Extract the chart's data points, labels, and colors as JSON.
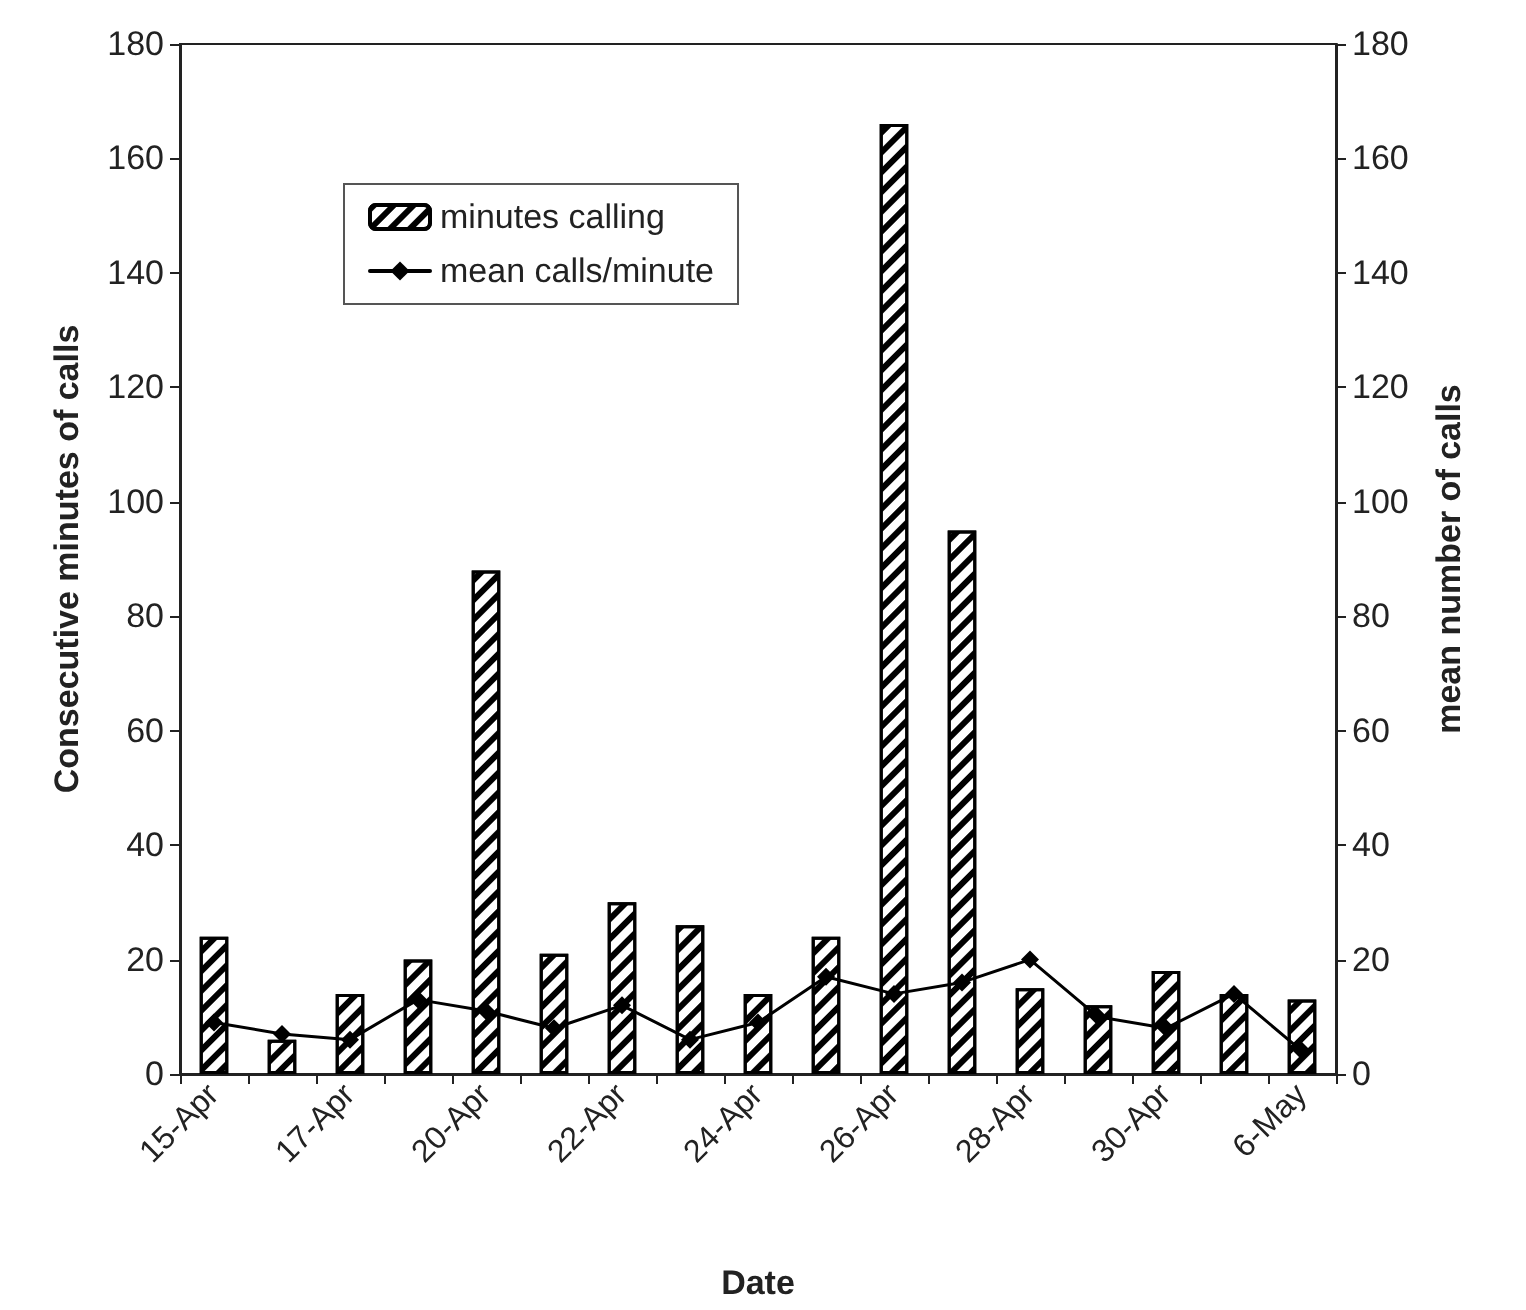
{
  "chart_data": {
    "type": "bar",
    "xlabel": "Date",
    "ylabel": "Consecutive minutes of calls",
    "y2label": "mean number of calls",
    "categories": [
      "15-Apr",
      null,
      "17-Apr",
      null,
      "20-Apr",
      null,
      "22-Apr",
      null,
      "24-Apr",
      null,
      "26-Apr",
      null,
      "28-Apr",
      null,
      "30-Apr",
      null,
      "6-May"
    ],
    "series": [
      {
        "name": "minutes calling",
        "color": "#000000",
        "values": [
          24,
          6,
          14,
          20,
          88,
          21,
          30,
          26,
          14,
          24,
          166,
          95,
          15,
          12,
          18,
          14,
          13
        ]
      },
      {
        "name": "mean calls/minute",
        "type": "line",
        "axis": "y2",
        "color": "#000000",
        "marker": "diamond",
        "values": [
          9,
          7,
          6,
          13,
          11,
          8,
          12,
          6,
          9,
          17,
          14,
          16,
          20,
          10,
          8,
          14,
          4
        ]
      }
    ],
    "ylim": [
      0,
      180
    ],
    "yticks": [
      0,
      20,
      40,
      60,
      80,
      100,
      120,
      140,
      160,
      180
    ],
    "y2lim": [
      0,
      180
    ],
    "y2ticks": [
      0,
      20,
      40,
      60,
      80,
      100,
      120,
      140,
      160,
      180
    ],
    "grid": false,
    "legend": "top left"
  }
}
